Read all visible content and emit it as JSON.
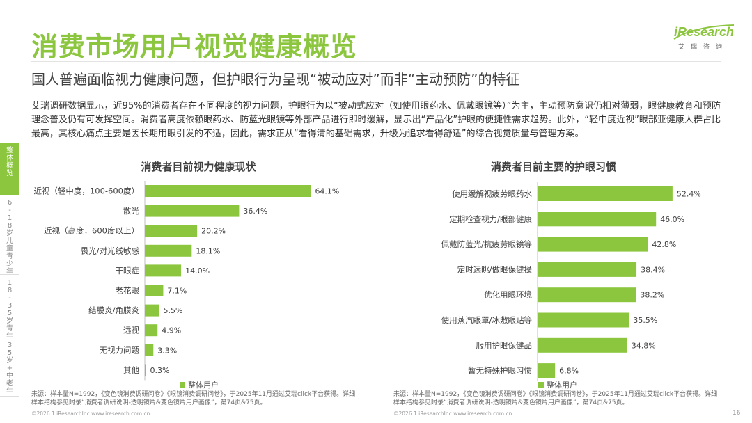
{
  "header": {
    "title": "消费市场用户视觉健康概览",
    "subtitle": "国人普遍面临视力健康问题，但护眼行为呈现“被动应对”而非“主动预防”的特征"
  },
  "logo": {
    "brand": "iResearch",
    "cn": "艾瑞咨询"
  },
  "intro": "艾瑞调研数据显示，近95%的消费者存在不同程度的视力问题，护眼行为以“被动式应对（如使用眼药水、佩戴眼镜等）”为主，主动预防意识仍相对薄弱，眼健康教育和预防理念普及仍有可发挥空间。消费者高度依赖眼药水、防蓝光眼镜等外部产品进行即时缓解，显示出“产品化”护眼的便捷性需求趋势。此外，“轻中度近视”眼部亚健康人群占比最高，其核心痛点主要是因长期用眼引发的不适，因此，需求正从“看得清的基础需求，升级为追求看得舒适”的综合视觉质量与管理方案。",
  "sidebar": [
    {
      "label": "整体概览",
      "active": true
    },
    {
      "label": "6-18岁儿童青少年",
      "active": false
    },
    {
      "label": "18-35岁青年",
      "active": false
    },
    {
      "label": "35岁+中老年",
      "active": false
    }
  ],
  "chart_data": [
    {
      "type": "bar",
      "orientation": "horizontal",
      "title": "消费者目前视力健康现状",
      "categories": [
        "近视（轻中度，100-600度）",
        "散光",
        "近视（高度，600度以上）",
        "畏光/对光线敏感",
        "干眼症",
        "老花眼",
        "结膜炎/角膜炎",
        "远视",
        "无视力问题",
        "其他"
      ],
      "series": [
        {
          "name": "整体用户",
          "values": [
            64.1,
            36.4,
            20.2,
            18.1,
            14.0,
            7.1,
            5.5,
            4.9,
            3.3,
            0.3
          ]
        }
      ],
      "value_labels": [
        "64.1%",
        "36.4%",
        "20.2%",
        "18.1%",
        "14.0%",
        "7.1%",
        "5.5%",
        "4.9%",
        "3.3%",
        "0.3%"
      ],
      "unit": "%",
      "color": "#8cc63f",
      "legend": "bottom"
    },
    {
      "type": "bar",
      "orientation": "horizontal",
      "title": "消费者目前主要的护眼习惯",
      "categories": [
        "使用缓解视疲劳眼药水",
        "定期检查视力/眼部健康",
        "佩戴防蓝光/抗疲劳眼镜等",
        "定时远眺/做眼保健操",
        "优化用眼环境",
        "使用蒸汽眼罩/冰敷眼贴等",
        "服用护眼保健品",
        "暂无特殊护眼习惯"
      ],
      "series": [
        {
          "name": "整体用户",
          "values": [
            52.4,
            46.0,
            42.8,
            38.4,
            38.2,
            35.5,
            34.8,
            6.8
          ]
        }
      ],
      "value_labels": [
        "52.4%",
        "46.0%",
        "42.8%",
        "38.4%",
        "38.2%",
        "35.5%",
        "34.8%",
        "6.8%"
      ],
      "unit": "%",
      "color": "#8cc63f",
      "legend": "bottom"
    }
  ],
  "footer": {
    "source_left": "来源：样本量N=1992，《变色镜消费调研问卷》《眼镜消费调研问卷》，于2025年11月通过艾瑞click平台获得。详细样本结构参见附录“消费者调研说明-透明镜片&变色镜片用户画像”，第74页&75页。",
    "source_right": "来源：样本量N=1992，《变色镜消费调研问卷》《眼镜消费调研问卷》，于2025年11月通过艾瑞click平台获得。详细样本结构参见附录“消费者调研说明-透明镜片&变色镜片用户画像”，第74页&75页。",
    "copyright_left": "©2026.1 iResearchInc.www.iresearch.com.cn",
    "copyright_right": "©2026.1 iResearchInc.www.iresearch.com.cn",
    "page": "16"
  }
}
